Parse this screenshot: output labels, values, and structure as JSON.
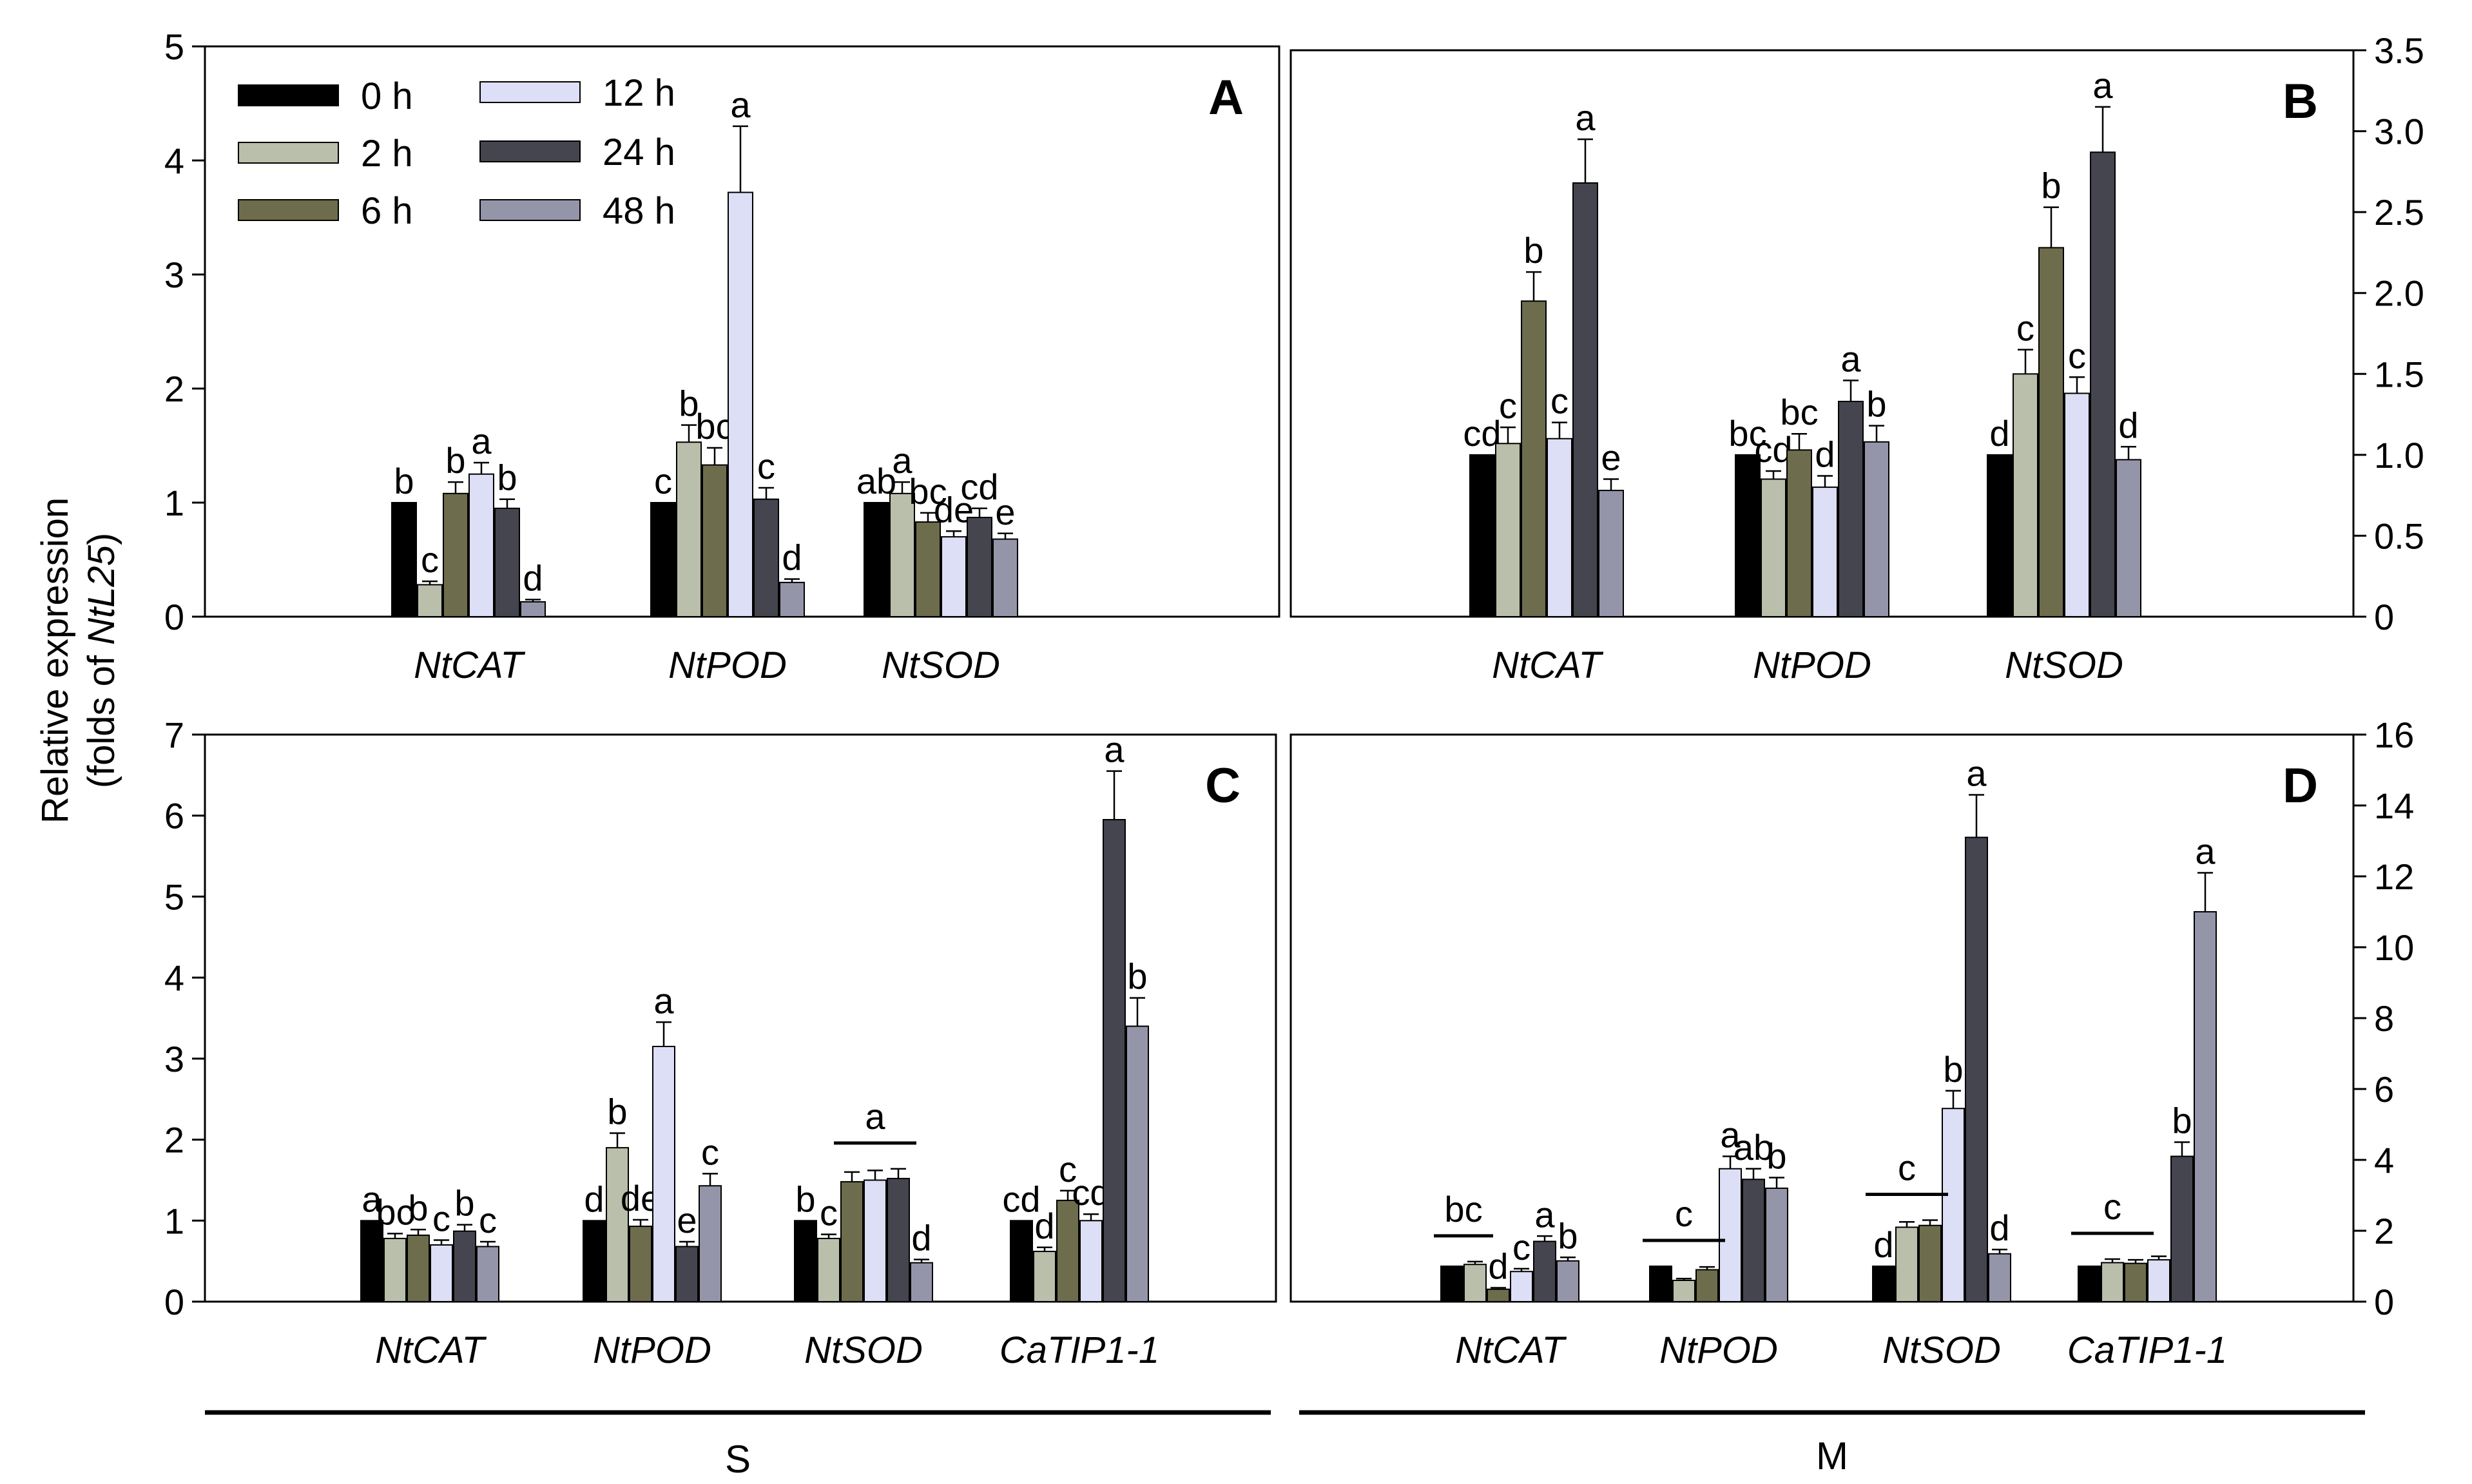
{
  "figure": {
    "y_axis_title_line1": "Relative expression",
    "y_axis_title_line2_prefix": "(folds of ",
    "y_axis_title_line2_gene": "NtL25",
    "y_axis_title_line2_suffix": ")",
    "group_labels": [
      "S",
      "M"
    ]
  },
  "legend": {
    "entries": [
      {
        "label": "0 h",
        "color": "#000000"
      },
      {
        "label": "2 h",
        "color": "#b9bfaa"
      },
      {
        "label": "6 h",
        "color": "#6d6c4c"
      },
      {
        "label": "12 h",
        "color": "#dcdff5"
      },
      {
        "label": "24 h",
        "color": "#45454f"
      },
      {
        "label": "48 h",
        "color": "#9595aa"
      }
    ]
  },
  "chart_data": [
    {
      "panel": "A",
      "type": "bar",
      "group": "S",
      "categories": [
        "NtCAT",
        "NtPOD",
        "NtSOD"
      ],
      "ylim": [
        0,
        5
      ],
      "yticks": [
        0,
        1,
        2,
        3,
        4,
        5
      ],
      "ytick_labels": [
        "0",
        "1",
        "2",
        "3",
        "4",
        "5"
      ],
      "axis_side": "left",
      "series": [
        {
          "name": "0 h",
          "values": [
            1.0,
            1.0,
            1.0
          ],
          "errors": [
            0,
            0,
            0
          ],
          "letters": [
            "b",
            "c",
            "ab"
          ]
        },
        {
          "name": "2 h",
          "values": [
            0.28,
            1.53,
            1.08
          ],
          "errors": [
            0.03,
            0.15,
            0.1
          ],
          "letters": [
            "c",
            "b",
            "a"
          ]
        },
        {
          "name": "6 h",
          "values": [
            1.08,
            1.33,
            0.83
          ],
          "errors": [
            0.1,
            0.15,
            0.08
          ],
          "letters": [
            "b",
            "bc",
            "bc"
          ]
        },
        {
          "name": "12 h",
          "values": [
            1.25,
            3.72,
            0.7
          ],
          "errors": [
            0.1,
            0.58,
            0.05
          ],
          "letters": [
            "a",
            "a",
            "de"
          ]
        },
        {
          "name": "24 h",
          "values": [
            0.95,
            1.03,
            0.87
          ],
          "errors": [
            0.08,
            0.1,
            0.08
          ],
          "letters": [
            "b",
            "c",
            "cd"
          ]
        },
        {
          "name": "48 h",
          "values": [
            0.13,
            0.3,
            0.68
          ],
          "errors": [
            0.02,
            0.03,
            0.05
          ],
          "letters": [
            "d",
            "d",
            "e"
          ]
        }
      ]
    },
    {
      "panel": "B",
      "type": "bar",
      "group": "M",
      "categories": [
        "NtCAT",
        "NtPOD",
        "NtSOD"
      ],
      "ylim": [
        0,
        3.5
      ],
      "yticks": [
        0,
        0.5,
        1.0,
        1.5,
        2.0,
        2.5,
        3.0,
        3.5
      ],
      "ytick_labels": [
        "0",
        "0.5",
        "1.0",
        "1.5",
        "2.0",
        "2.5",
        "3.0",
        "3.5"
      ],
      "axis_side": "right",
      "series": [
        {
          "name": "0 h",
          "values": [
            1.0,
            1.0,
            1.0
          ],
          "errors": [
            0,
            0,
            0
          ],
          "letters": [
            "cd",
            "bc",
            "d"
          ]
        },
        {
          "name": "2 h",
          "values": [
            1.07,
            0.85,
            1.5
          ],
          "errors": [
            0.1,
            0.05,
            0.15
          ],
          "letters": [
            "c",
            "cd",
            "c"
          ]
        },
        {
          "name": "6 h",
          "values": [
            1.95,
            1.03,
            2.28
          ],
          "errors": [
            0.18,
            0.1,
            0.25
          ],
          "letters": [
            "b",
            "bc",
            "b"
          ]
        },
        {
          "name": "12 h",
          "values": [
            1.1,
            0.8,
            1.38
          ],
          "errors": [
            0.1,
            0.07,
            0.1
          ],
          "letters": [
            "c",
            "d",
            "c"
          ]
        },
        {
          "name": "24 h",
          "values": [
            2.68,
            1.33,
            2.87
          ],
          "errors": [
            0.27,
            0.13,
            0.28
          ],
          "letters": [
            "a",
            "a",
            "a"
          ]
        },
        {
          "name": "48 h",
          "values": [
            0.78,
            1.08,
            0.97
          ],
          "errors": [
            0.07,
            0.1,
            0.08
          ],
          "letters": [
            "e",
            "b",
            "d"
          ]
        }
      ]
    },
    {
      "panel": "C",
      "type": "bar",
      "group": "S",
      "categories": [
        "NtCAT",
        "NtPOD",
        "NtSOD",
        "CaTIP1-1"
      ],
      "ylim": [
        0,
        7
      ],
      "yticks": [
        0,
        1,
        2,
        3,
        4,
        5,
        6,
        7
      ],
      "ytick_labels": [
        "0",
        "1",
        "2",
        "3",
        "4",
        "5",
        "6",
        "7"
      ],
      "axis_side": "left",
      "series": [
        {
          "name": "0 h",
          "values": [
            1.0,
            1.0,
            1.0,
            1.0
          ],
          "errors": [
            0,
            0,
            0,
            0
          ],
          "letters": [
            "a",
            "d",
            "b",
            "cd"
          ]
        },
        {
          "name": "2 h",
          "values": [
            0.78,
            1.9,
            0.78,
            0.62
          ],
          "errors": [
            0.06,
            0.18,
            0.05,
            0.05
          ],
          "letters": [
            "bc",
            "b",
            "c",
            "d"
          ]
        },
        {
          "name": "6 h",
          "values": [
            0.82,
            0.93,
            1.48,
            1.25
          ],
          "errors": [
            0.07,
            0.08,
            0.12,
            0.12
          ],
          "letters": [
            "b",
            "de",
            "",
            "c"
          ]
        },
        {
          "name": "12 h",
          "values": [
            0.7,
            3.15,
            1.5,
            1.0
          ],
          "errors": [
            0.06,
            0.3,
            0.12,
            0.08
          ],
          "letters": [
            "c",
            "a",
            "",
            "cd"
          ]
        },
        {
          "name": "24 h",
          "values": [
            0.87,
            0.68,
            1.52,
            5.95
          ],
          "errors": [
            0.08,
            0.06,
            0.12,
            0.6
          ],
          "letters": [
            "b",
            "e",
            "",
            "a"
          ]
        },
        {
          "name": "48 h",
          "values": [
            0.68,
            1.43,
            0.48,
            3.4
          ],
          "errors": [
            0.06,
            0.15,
            0.04,
            0.35
          ],
          "letters": [
            "c",
            "c",
            "d",
            "b"
          ]
        }
      ],
      "group_marks": [
        {
          "category": "NtSOD",
          "from": "6 h",
          "to": "24 h",
          "letter": "a"
        }
      ]
    },
    {
      "panel": "D",
      "type": "bar",
      "group": "M",
      "categories": [
        "NtCAT",
        "NtPOD",
        "NtSOD",
        "CaTIP1-1"
      ],
      "ylim": [
        0,
        16
      ],
      "yticks": [
        0,
        2,
        4,
        6,
        8,
        10,
        12,
        14,
        16
      ],
      "ytick_labels": [
        "0",
        "2",
        "4",
        "6",
        "8",
        "10",
        "12",
        "14",
        "16"
      ],
      "axis_side": "right",
      "series": [
        {
          "name": "0 h",
          "values": [
            1.0,
            1.0,
            1.0,
            1.0
          ],
          "errors": [
            0,
            0,
            0,
            0
          ],
          "letters": [
            "",
            "",
            "d",
            ""
          ]
        },
        {
          "name": "2 h",
          "values": [
            1.05,
            0.6,
            2.1,
            1.1
          ],
          "errors": [
            0.08,
            0.05,
            0.15,
            0.1
          ],
          "letters": [
            "",
            "",
            "",
            ""
          ]
        },
        {
          "name": "6 h",
          "values": [
            0.35,
            0.9,
            2.15,
            1.08
          ],
          "errors": [
            0.04,
            0.08,
            0.15,
            0.1
          ],
          "letters": [
            "d",
            "",
            "",
            ""
          ]
        },
        {
          "name": "12 h",
          "values": [
            0.85,
            3.75,
            5.45,
            1.18
          ],
          "errors": [
            0.08,
            0.35,
            0.5,
            0.1
          ],
          "letters": [
            "c",
            "a",
            "b",
            ""
          ]
        },
        {
          "name": "24 h",
          "values": [
            1.7,
            3.45,
            13.1,
            4.1
          ],
          "errors": [
            0.15,
            0.3,
            1.2,
            0.4
          ],
          "letters": [
            "a",
            "ab",
            "a",
            "b"
          ]
        },
        {
          "name": "48 h",
          "values": [
            1.15,
            3.2,
            1.35,
            11.0
          ],
          "errors": [
            0.1,
            0.3,
            0.12,
            1.1
          ],
          "letters": [
            "b",
            "b",
            "d",
            "a"
          ]
        }
      ],
      "group_marks": [
        {
          "category": "NtCAT",
          "from": "0 h",
          "to": "2 h",
          "letter": "bc"
        },
        {
          "category": "NtPOD",
          "from": "0 h",
          "to": "6 h",
          "letter": "c"
        },
        {
          "category": "NtSOD",
          "from": "0 h",
          "to": "6 h",
          "letter": "c"
        },
        {
          "category": "CaTIP1-1",
          "from": "0 h",
          "to": "6 h",
          "letter": "c"
        }
      ]
    }
  ]
}
